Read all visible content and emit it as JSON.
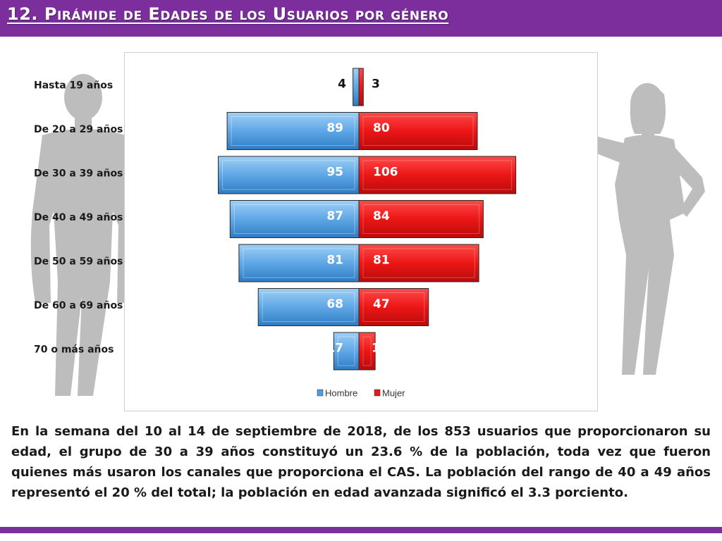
{
  "header": {
    "title": "12. Pirámide de Edades de los Usuarios por género",
    "color": "#7b2e9c"
  },
  "chart_data": {
    "type": "bar",
    "orientation": "horizontal-pyramid",
    "categories": [
      "Hasta 19 años",
      "De 20 a 29 años",
      "De 30 a 39 años",
      "De 40 a 49 años",
      "De 50 a 59 años",
      "De 60 a 69 años",
      "70 o más años"
    ],
    "series": [
      {
        "name": "Hombre",
        "values": [
          4,
          89,
          95,
          87,
          81,
          68,
          17
        ],
        "color": "#4f9de0",
        "side": "left"
      },
      {
        "name": "Mujer",
        "values": [
          3,
          80,
          106,
          84,
          81,
          47,
          11
        ],
        "color": "#e31a1a",
        "side": "right"
      }
    ],
    "legend": {
      "position": "bottom"
    },
    "grid": false
  },
  "description": "En la semana del 10 al 14 de septiembre de 2018, de los 853 usuarios que proporcionaron su edad, el grupo de 30 a 39 años constituyó un 23.6 % de la población, toda vez que fueron quienes más usaron los canales que proporciona el CAS. La población del rango de 40 a 49 años representó el 20 % del total; la población en edad avanzada significó el 3.3 porciento.",
  "footer": {
    "color": "#7b2e9c"
  }
}
